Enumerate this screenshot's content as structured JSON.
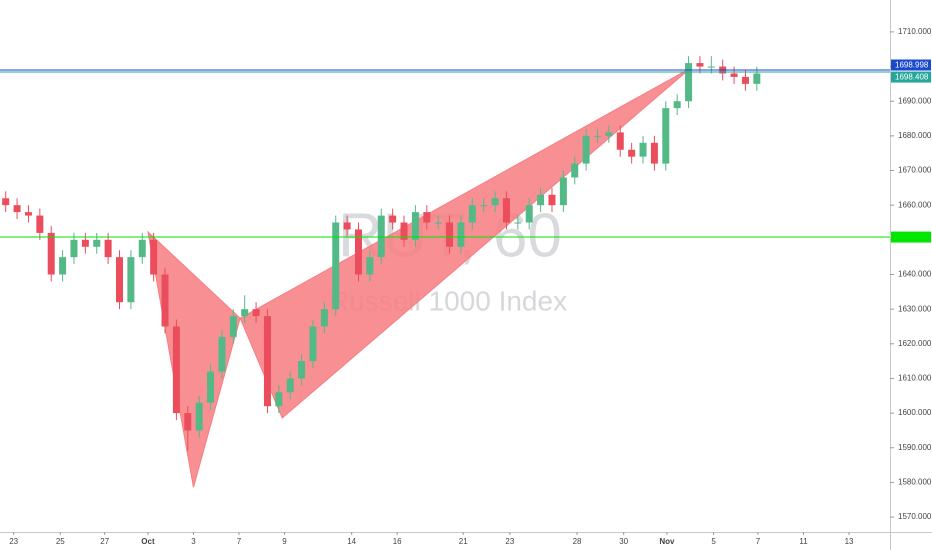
{
  "chart_data": {
    "type": "candlestick",
    "watermark_title": "RUT, 60",
    "watermark_subtitle": "Russell 1000 Index",
    "up_color": "#53b987",
    "down_color": "#eb4d5c",
    "x": [
      0.5,
      1.5,
      2.5,
      3.5,
      4.5,
      5.5,
      6.5,
      7.5,
      8.5,
      9.5,
      10.5,
      11.5,
      12.5,
      13.5,
      14.5,
      15.5,
      16.5,
      17.5,
      18.5,
      19.5,
      20.5,
      21.5,
      22.5,
      23.5,
      24.5,
      25.5,
      26.5,
      27.5,
      28.5,
      29.5,
      30.5,
      31.5,
      32.5,
      33.5,
      34.5,
      35.5,
      36.5,
      37.5,
      38.5,
      39.5,
      40.5,
      41.5,
      42.5,
      43.5,
      44.5,
      45.5,
      46.5,
      47.5,
      48.5,
      49.5,
      50.5,
      51.5,
      52.5,
      53.5,
      54.5,
      55.5,
      56.5,
      57.5,
      58.5,
      59.5,
      60.5,
      61.5,
      62.5,
      63.5,
      64.5,
      65.5,
      66.5
    ],
    "open": [
      1662,
      1660,
      1658,
      1657,
      1652,
      1640,
      1645,
      1650,
      1648,
      1650,
      1645,
      1632,
      1645,
      1650,
      1640,
      1625,
      1600,
      1595,
      1603,
      1612,
      1622,
      1628,
      1630,
      1628,
      1602,
      1606,
      1610,
      1615,
      1625,
      1630,
      1655,
      1653,
      1640,
      1645,
      1657,
      1655,
      1650,
      1658,
      1655,
      1655,
      1648,
      1655,
      1660,
      1660,
      1662,
      1655,
      1655,
      1660,
      1663,
      1660,
      1668,
      1672,
      1680,
      1680,
      1681,
      1676,
      1674,
      1678,
      1672,
      1688,
      1690,
      1701,
      1700,
      1700,
      1698,
      1697,
      1695
    ],
    "high": [
      1664,
      1662,
      1660,
      1659,
      1654,
      1647,
      1652,
      1652,
      1652,
      1652,
      1647,
      1647,
      1652,
      1652,
      1642,
      1627,
      1602,
      1605,
      1614,
      1624,
      1630,
      1634,
      1632,
      1630,
      1608,
      1612,
      1617,
      1627,
      1632,
      1657,
      1657,
      1655,
      1647,
      1659,
      1659,
      1657,
      1660,
      1660,
      1657,
      1657,
      1657,
      1662,
      1662,
      1664,
      1664,
      1657,
      1662,
      1665,
      1665,
      1670,
      1674,
      1682,
      1682,
      1683,
      1683,
      1678,
      1680,
      1680,
      1690,
      1692,
      1703,
      1703,
      1703,
      1702,
      1700,
      1699,
      1700
    ],
    "low": [
      1658,
      1656,
      1655,
      1650,
      1638,
      1638,
      1643,
      1646,
      1646,
      1643,
      1630,
      1630,
      1643,
      1638,
      1623,
      1598,
      1589,
      1593,
      1601,
      1610,
      1620,
      1626,
      1626,
      1600,
      1600,
      1604,
      1608,
      1613,
      1623,
      1628,
      1651,
      1638,
      1638,
      1643,
      1653,
      1648,
      1648,
      1653,
      1653,
      1646,
      1646,
      1653,
      1658,
      1658,
      1653,
      1653,
      1653,
      1658,
      1658,
      1658,
      1666,
      1670,
      1678,
      1678,
      1674,
      1672,
      1672,
      1670,
      1670,
      1686,
      1688,
      1698,
      1698,
      1696,
      1695,
      1693,
      1693
    ],
    "close": [
      1660,
      1658,
      1657,
      1652,
      1640,
      1645,
      1650,
      1648,
      1650,
      1645,
      1632,
      1645,
      1650,
      1640,
      1625,
      1600,
      1595,
      1603,
      1612,
      1622,
      1628,
      1630,
      1628,
      1602,
      1606,
      1610,
      1615,
      1625,
      1630,
      1655,
      1653,
      1640,
      1645,
      1657,
      1655,
      1650,
      1658,
      1655,
      1655,
      1648,
      1655,
      1660,
      1660,
      1662,
      1655,
      1655,
      1660,
      1663,
      1660,
      1668,
      1672,
      1680,
      1680,
      1681,
      1676,
      1674,
      1678,
      1672,
      1688,
      1690,
      1701,
      1700,
      1700,
      1698,
      1697,
      1695,
      1698
    ],
    "xlim": [
      0,
      78.2
    ],
    "xticks": [
      {
        "value": 1.2,
        "label": "23"
      },
      {
        "value": 5.3,
        "label": "25"
      },
      {
        "value": 9.2,
        "label": "27"
      },
      {
        "value": 13,
        "label": "Oct"
      },
      {
        "value": 17,
        "label": "3"
      },
      {
        "value": 21,
        "label": "7"
      },
      {
        "value": 25,
        "label": "9"
      },
      {
        "value": 30.9,
        "label": "14"
      },
      {
        "value": 34.9,
        "label": "16"
      },
      {
        "value": 40.7,
        "label": "21"
      },
      {
        "value": 44.8,
        "label": "23"
      },
      {
        "value": 50.7,
        "label": "28"
      },
      {
        "value": 54.8,
        "label": "30"
      },
      {
        "value": 58.6,
        "label": "Nov"
      },
      {
        "value": 62.7,
        "label": "5"
      },
      {
        "value": 66.6,
        "label": "7"
      },
      {
        "value": 70.6,
        "label": "11"
      },
      {
        "value": 74.6,
        "label": "13"
      }
    ],
    "ylim": [
      1565.7,
      1719.2
    ],
    "yticks": [
      {
        "value": 1570,
        "label": "1570.000"
      },
      {
        "value": 1580,
        "label": "1580.000"
      },
      {
        "value": 1590,
        "label": "1590.000"
      },
      {
        "value": 1600,
        "label": "1600.000"
      },
      {
        "value": 1610,
        "label": "1610.000"
      },
      {
        "value": 1620,
        "label": "1620.000"
      },
      {
        "value": 1630,
        "label": "1630.000"
      },
      {
        "value": 1640,
        "label": "1640.000"
      },
      {
        "value": 1650,
        "label": "1650.000"
      },
      {
        "value": 1660,
        "label": "1660.000"
      },
      {
        "value": 1670,
        "label": "1670.000"
      },
      {
        "value": 1680,
        "label": "1680.000"
      },
      {
        "value": 1690,
        "label": "1690.000"
      },
      {
        "value": 1700,
        "label": "1700.000"
      },
      {
        "value": 1710,
        "label": "1710.000"
      }
    ],
    "pattern": {
      "color": "#f77c80",
      "x": [
        13,
        17,
        21.1,
        24.8,
        60.7
      ],
      "values": [
        1652.3,
        1578.6,
        1627.4,
        1598.6,
        1699.6
      ]
    },
    "hlines": [
      {
        "value": 1698.998,
        "label": "1698.998",
        "color": "#1848cc"
      },
      {
        "value": 1698.408,
        "label": "1698.408",
        "color": "#26a69a"
      },
      {
        "value": 1650.8,
        "color": "#00e600"
      }
    ]
  }
}
